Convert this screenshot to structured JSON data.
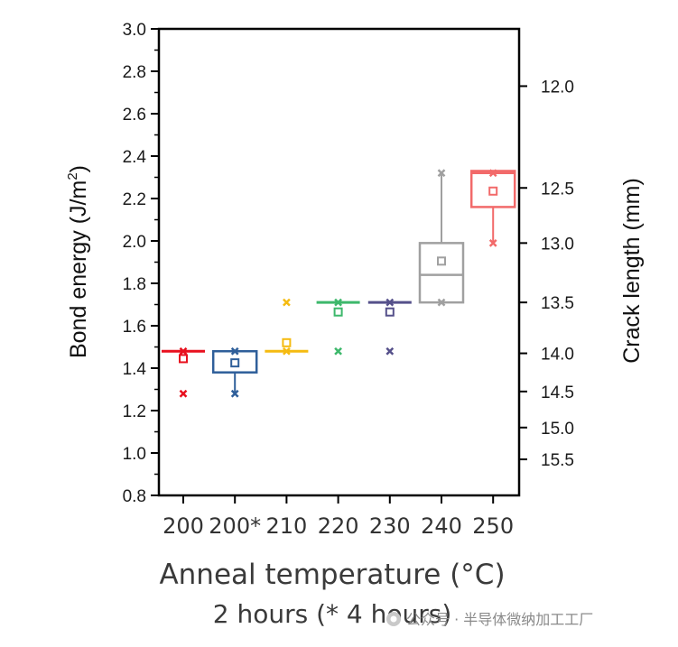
{
  "chart_data": {
    "type": "box",
    "categories": [
      "200",
      "200*",
      "210",
      "220",
      "230",
      "240",
      "250"
    ],
    "xlabel": "Anneal temperature (°C)",
    "xlabel_sub": "2 hours (* 4 hours)",
    "ylabel": "Bond energy (J/m",
    "ylabel_sup": "2",
    "ylabel_close": ")",
    "ylim": [
      0.8,
      3.0
    ],
    "y_ticks": [
      "0.8",
      "1.0",
      "1.2",
      "1.4",
      "1.6",
      "1.8",
      "2.0",
      "2.2",
      "2.4",
      "2.6",
      "2.8",
      "3.0"
    ],
    "y2label": "Crack length (mm)",
    "y2_ticks": [
      {
        "label": "12.0",
        "bond": 2.73
      },
      {
        "label": "12.5",
        "bond": 2.25
      },
      {
        "label": "13.0",
        "bond": 1.99
      },
      {
        "label": "13.5",
        "bond": 1.71
      },
      {
        "label": "14.0",
        "bond": 1.47
      },
      {
        "label": "14.5",
        "bond": 1.29
      },
      {
        "label": "15.0",
        "bond": 1.12
      },
      {
        "label": "15.5",
        "bond": 0.97
      }
    ],
    "series": [
      {
        "category": "200",
        "color": "#e8101e",
        "q1": 1.475,
        "median": 1.48,
        "q3": 1.485,
        "mean": 1.445,
        "whisker_low": null,
        "whisker_high": null,
        "points": [
          1.48,
          1.28
        ]
      },
      {
        "category": "200*",
        "color": "#2f5f9a",
        "q1": 1.38,
        "median": 1.48,
        "q3": 1.48,
        "mean": 1.425,
        "whisker_low": 1.28,
        "whisker_high": null,
        "points": [
          1.48,
          1.28
        ]
      },
      {
        "category": "210",
        "color": "#f5bb11",
        "q1": 1.475,
        "median": 1.48,
        "q3": 1.485,
        "mean": 1.52,
        "whisker_low": null,
        "whisker_high": null,
        "points": [
          1.71,
          1.48
        ]
      },
      {
        "category": "220",
        "color": "#3db86b",
        "q1": 1.705,
        "median": 1.71,
        "q3": 1.715,
        "mean": 1.665,
        "whisker_low": null,
        "whisker_high": null,
        "points": [
          1.71,
          1.48
        ]
      },
      {
        "category": "230",
        "color": "#55508a",
        "q1": 1.705,
        "median": 1.71,
        "q3": 1.715,
        "mean": 1.665,
        "whisker_low": null,
        "whisker_high": null,
        "points": [
          1.71,
          1.48
        ]
      },
      {
        "category": "240",
        "color": "#a0a0a0",
        "q1": 1.71,
        "median": 1.84,
        "q3": 1.99,
        "mean": 1.905,
        "whisker_low": null,
        "whisker_high": 2.32,
        "points": [
          2.32,
          1.71
        ]
      },
      {
        "category": "250",
        "color": "#f26a6a",
        "q1": 2.16,
        "median": 2.32,
        "q3": 2.33,
        "mean": 2.235,
        "whisker_low": 1.99,
        "whisker_high": null,
        "points": [
          2.32,
          1.99
        ]
      }
    ]
  },
  "watermark": {
    "text": "公众号 · 半导体微纳加工工厂"
  }
}
